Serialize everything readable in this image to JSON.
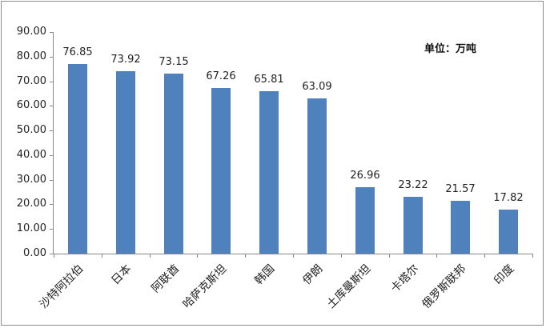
{
  "chart_data": {
    "type": "bar",
    "title": "",
    "unit_label": "单位：万吨",
    "xlabel": "",
    "ylabel": "",
    "ylim": [
      0,
      90
    ],
    "yticks": [
      "0.00",
      "10.00",
      "20.00",
      "30.00",
      "40.00",
      "50.00",
      "60.00",
      "70.00",
      "80.00",
      "90.00"
    ],
    "grid": false,
    "legend": "none",
    "bar_color": "#4f81bd",
    "categories": [
      "沙特阿拉伯",
      "日本",
      "阿联酋",
      "哈萨克斯坦",
      "韩国",
      "伊朗",
      "土库曼斯坦",
      "卡塔尔",
      "俄罗斯联邦",
      "印度"
    ],
    "values": [
      76.85,
      73.92,
      73.15,
      67.26,
      65.81,
      63.09,
      26.96,
      23.22,
      21.57,
      17.82
    ],
    "value_labels": [
      "76.85",
      "73.92",
      "73.15",
      "67.26",
      "65.81",
      "63.09",
      "26.96",
      "23.22",
      "21.57",
      "17.82"
    ]
  }
}
